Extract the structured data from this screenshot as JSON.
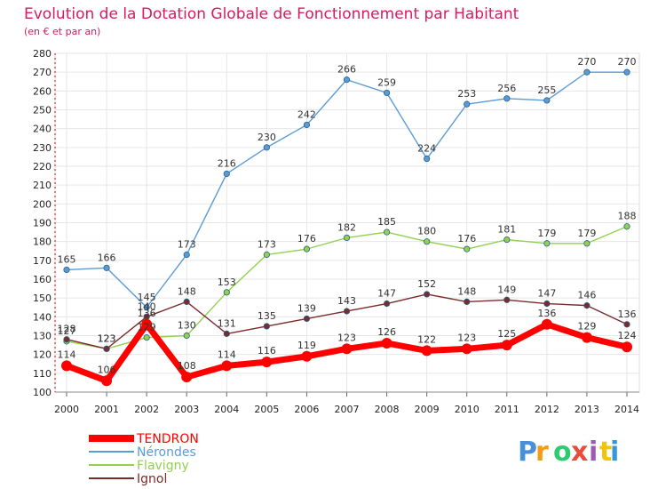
{
  "chart_data": {
    "type": "line",
    "title": "Evolution de la Dotation Globale de Fonctionnement par Habitant",
    "subtitle": "(en € et par an)",
    "xlabel": "",
    "ylabel": "",
    "x": [
      "2000",
      "2001",
      "2002",
      "2003",
      "2004",
      "2005",
      "2006",
      "2007",
      "2008",
      "2009",
      "2010",
      "2011",
      "2012",
      "2013",
      "2014"
    ],
    "ylim": [
      100,
      280
    ],
    "ytick_step": 10,
    "grid": true,
    "legend_position": "bottom-left",
    "series": [
      {
        "name": "TENDRON",
        "color": "#ff0000",
        "values": [
          114,
          106,
          136,
          108,
          114,
          116,
          119,
          123,
          126,
          122,
          123,
          125,
          136,
          129,
          124
        ]
      },
      {
        "name": "Nérondes",
        "color": "#5b9bd5",
        "values": [
          165,
          166,
          145,
          173,
          216,
          230,
          242,
          266,
          259,
          224,
          253,
          256,
          255,
          270,
          270
        ]
      },
      {
        "name": "Flavigny",
        "color": "#92d050",
        "values": [
          127,
          123,
          129,
          130,
          153,
          173,
          176,
          182,
          185,
          180,
          176,
          181,
          179,
          179,
          188
        ]
      },
      {
        "name": "Ignol",
        "color": "#7b2b2b",
        "values": [
          128,
          123,
          140,
          148,
          131,
          135,
          139,
          143,
          147,
          152,
          148,
          149,
          147,
          146,
          136
        ]
      }
    ]
  },
  "logo": {
    "text": "Proxiti",
    "letter_colors": [
      "#4a90d9",
      "#f39c12",
      "#2ecc71",
      "#e74c3c",
      "#9b59b6",
      "#f1c40f",
      "#3498db"
    ]
  }
}
